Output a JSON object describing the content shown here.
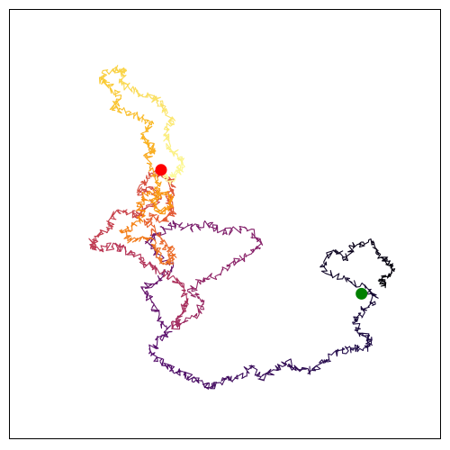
{
  "chart_data": {
    "type": "line",
    "title": "",
    "xlabel": "",
    "ylabel": "",
    "grid": false,
    "legend": "none",
    "colormap": "inferno",
    "xlim": [
      0,
      100
    ],
    "ylim": [
      0,
      100
    ],
    "walk_points": [
      [
        87,
        36
      ],
      [
        86,
        37
      ],
      [
        89,
        39
      ],
      [
        88,
        41
      ],
      [
        86,
        43
      ],
      [
        84,
        46
      ],
      [
        80,
        45
      ],
      [
        78,
        42
      ],
      [
        75,
        44
      ],
      [
        72,
        40
      ],
      [
        78,
        37
      ],
      [
        83,
        35
      ],
      [
        85,
        33
      ],
      [
        82,
        30
      ],
      [
        80,
        27
      ],
      [
        82,
        24
      ],
      [
        84,
        23
      ],
      [
        82,
        21
      ],
      [
        79,
        21
      ],
      [
        76,
        20
      ],
      [
        73,
        18
      ],
      [
        70,
        16
      ],
      [
        67,
        16
      ],
      [
        64,
        18
      ],
      [
        61,
        16
      ],
      [
        58,
        14
      ],
      [
        56,
        17
      ],
      [
        53,
        14
      ],
      [
        50,
        14
      ],
      [
        47,
        12
      ],
      [
        44,
        13
      ],
      [
        41,
        15
      ],
      [
        38,
        16
      ],
      [
        35,
        18
      ],
      [
        33,
        20
      ],
      [
        34,
        23
      ],
      [
        37,
        25
      ],
      [
        35,
        28
      ],
      [
        33,
        32
      ],
      [
        31,
        35
      ],
      [
        35,
        37
      ],
      [
        38,
        40
      ],
      [
        34,
        43
      ],
      [
        32,
        46
      ],
      [
        35,
        48
      ],
      [
        38,
        50
      ],
      [
        42,
        49
      ],
      [
        46,
        50
      ],
      [
        50,
        48
      ],
      [
        55,
        49
      ],
      [
        58,
        46
      ],
      [
        56,
        43
      ],
      [
        52,
        41
      ],
      [
        48,
        38
      ],
      [
        44,
        37
      ],
      [
        42,
        34
      ],
      [
        45,
        32
      ],
      [
        44,
        29
      ],
      [
        40,
        27
      ],
      [
        38,
        26
      ],
      [
        40,
        29
      ],
      [
        41,
        32
      ],
      [
        40,
        36
      ],
      [
        37,
        38
      ],
      [
        33,
        40
      ],
      [
        30,
        42
      ],
      [
        27,
        44
      ],
      [
        24,
        45
      ],
      [
        21,
        44
      ],
      [
        19,
        45
      ],
      [
        20,
        47
      ],
      [
        23,
        49
      ],
      [
        24,
        52
      ],
      [
        27,
        53
      ],
      [
        30,
        52
      ],
      [
        32,
        54
      ],
      [
        35,
        56
      ],
      [
        33,
        58
      ],
      [
        30,
        57
      ],
      [
        31,
        60
      ],
      [
        34,
        62
      ],
      [
        37,
        61
      ],
      [
        38,
        58
      ],
      [
        37,
        55
      ],
      [
        38,
        53
      ],
      [
        36,
        51
      ],
      [
        33,
        52
      ],
      [
        32,
        50
      ],
      [
        34,
        48
      ],
      [
        36,
        45
      ],
      [
        38,
        43
      ],
      [
        37,
        41
      ],
      [
        35,
        42
      ],
      [
        34,
        45
      ],
      [
        31,
        47
      ],
      [
        28,
        46
      ],
      [
        26,
        48
      ],
      [
        29,
        50
      ],
      [
        31,
        52
      ],
      [
        30,
        55
      ],
      [
        32,
        57
      ],
      [
        35,
        58
      ],
      [
        37,
        56
      ],
      [
        38,
        54
      ],
      [
        35,
        53
      ],
      [
        33,
        55
      ],
      [
        35,
        57
      ],
      [
        34,
        60
      ],
      [
        33,
        63
      ],
      [
        32,
        66
      ],
      [
        34,
        67
      ],
      [
        32,
        69
      ],
      [
        31,
        71
      ],
      [
        33,
        73
      ],
      [
        30,
        75
      ],
      [
        27,
        76
      ],
      [
        24,
        77
      ],
      [
        26,
        80
      ],
      [
        23,
        82
      ],
      [
        21,
        84
      ],
      [
        24,
        86
      ],
      [
        27,
        86
      ],
      [
        26,
        83
      ],
      [
        29,
        81
      ],
      [
        32,
        80
      ],
      [
        34,
        79
      ],
      [
        36,
        77
      ],
      [
        38,
        74
      ],
      [
        36,
        71
      ],
      [
        37,
        68
      ],
      [
        39,
        66
      ],
      [
        40,
        64
      ],
      [
        39,
        62
      ],
      [
        37,
        60
      ],
      [
        36,
        62
      ]
    ],
    "markers": [
      {
        "name": "start",
        "x": 81.6,
        "y": 33.8,
        "color": "#008000"
      },
      {
        "name": "end",
        "x": 35.2,
        "y": 62.6,
        "color": "#ff0000"
      }
    ]
  }
}
